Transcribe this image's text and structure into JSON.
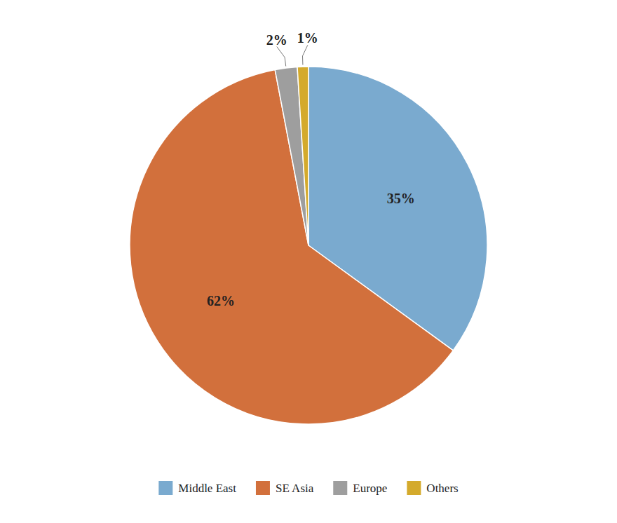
{
  "chart_data": {
    "type": "pie",
    "categories": [
      "Middle East",
      "SE Asia",
      "Europe",
      "Others"
    ],
    "values": [
      35,
      62,
      2,
      1
    ],
    "value_labels": [
      "35%",
      "62%",
      "2%",
      "1%"
    ],
    "colors": [
      "#7aaacf",
      "#d2703c",
      "#9e9e9e",
      "#d4aa2c"
    ],
    "data_labels": true,
    "legend": "bottom"
  }
}
